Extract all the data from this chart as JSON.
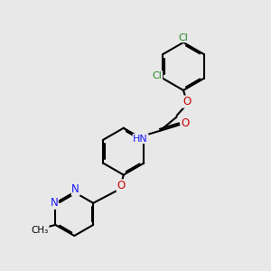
{
  "bg_color": "#e8e8e8",
  "bond_color": "#000000",
  "bond_width": 1.5,
  "dbo": 0.055,
  "atom_colors": {
    "N": "#1a1aff",
    "O": "#cc0000",
    "Cl": "#228b22"
  },
  "font_size": 7.5
}
